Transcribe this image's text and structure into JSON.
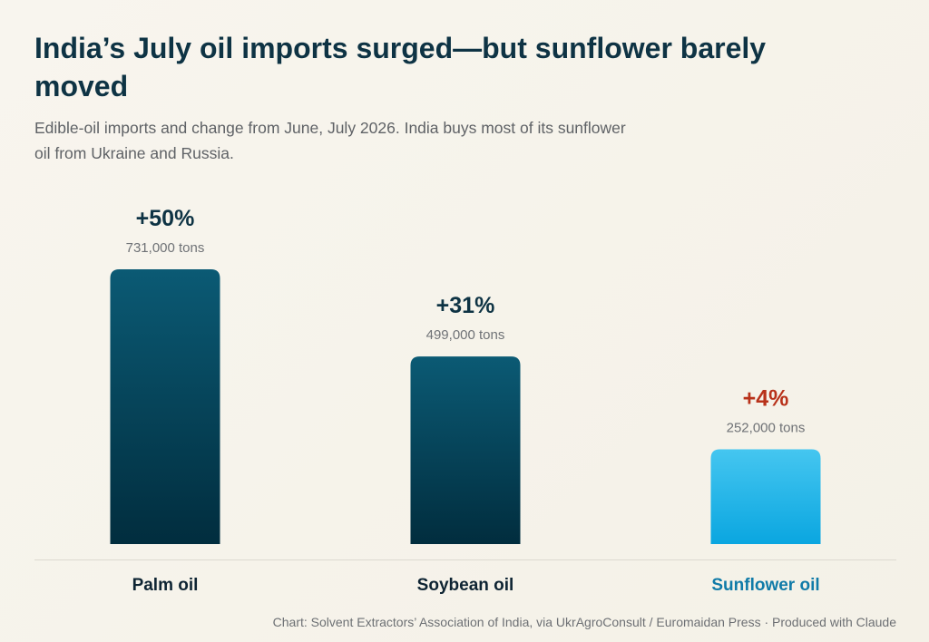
{
  "title": "India’s July oil imports surged—but sunflower barely moved",
  "subtitle": "Edible-oil imports and change from June, July 2026. India buys most of its sunflower oil from Ukraine and Russia.",
  "footer": "Chart: Solvent Extractors’ Association of India, via UkrAgroConsult / Euromaidan Press · Produced with Claude",
  "colors": {
    "dark_bar_top": "#0b5a74",
    "dark_bar_bottom": "#012d3e",
    "highlight_bar_top": "#45c6f0",
    "highlight_bar_bottom": "#0aa6e0",
    "pct_default": "#0e3344",
    "pct_highlight": "#b8321a",
    "value_label": "#6f7276",
    "category_default": "#0e2433",
    "category_highlight": "#107ba8",
    "baseline": "#dcd9d0"
  },
  "chart_data": {
    "type": "bar",
    "categories": [
      "Palm oil",
      "Soybean oil",
      "Sunflower oil"
    ],
    "values": [
      731000,
      499000,
      252000
    ],
    "value_labels": [
      "731,000 tons",
      "499,000 tons",
      "252,000 tons"
    ],
    "change_labels": [
      "+50%",
      "+31%",
      "+4%"
    ],
    "highlight": [
      false,
      false,
      true
    ],
    "ylim": [
      0,
      731000
    ],
    "grid": false,
    "legend": "none"
  }
}
